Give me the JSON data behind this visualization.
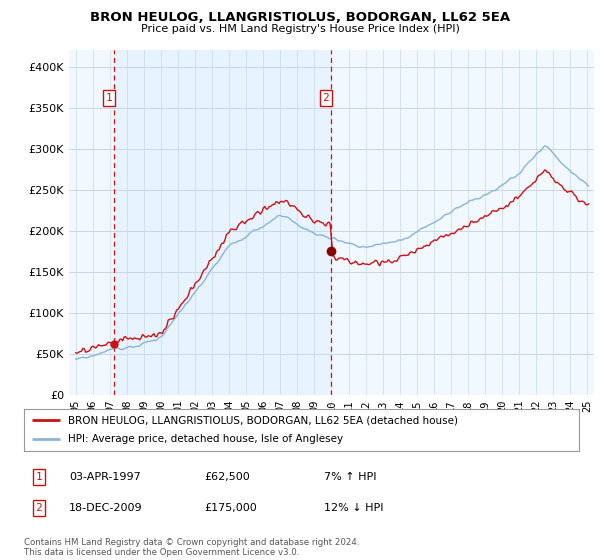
{
  "title1": "BRON HEULOG, LLANGRISTIOLUS, BODORGAN, LL62 5EA",
  "title2": "Price paid vs. HM Land Registry's House Price Index (HPI)",
  "ylabel_ticks": [
    "£0",
    "£50K",
    "£100K",
    "£150K",
    "£200K",
    "£250K",
    "£300K",
    "£350K",
    "£400K"
  ],
  "ylabel_values": [
    0,
    50000,
    100000,
    150000,
    200000,
    250000,
    300000,
    350000,
    400000
  ],
  "ylim": [
    0,
    420000
  ],
  "legend_line1": "BRON HEULOG, LLANGRISTIOLUS, BODORGAN, LL62 5EA (detached house)",
  "legend_line2": "HPI: Average price, detached house, Isle of Anglesey",
  "sale1_date": "03-APR-1997",
  "sale1_price": "£62,500",
  "sale1_hpi": "7% ↑ HPI",
  "sale1_year": 1997.25,
  "sale1_value": 62500,
  "sale2_date": "18-DEC-2009",
  "sale2_price": "£175,000",
  "sale2_hpi": "12% ↓ HPI",
  "sale2_year": 2009.96,
  "sale2_value": 175000,
  "footer": "Contains HM Land Registry data © Crown copyright and database right 2024.\nThis data is licensed under the Open Government Licence v3.0.",
  "hpi_color": "#8ab4d4",
  "price_color": "#cc1111",
  "vline_color": "#cc1111",
  "bg_shade_color": "#ddeeff",
  "background_color": "#ffffff",
  "grid_color": "#c8d8e8"
}
